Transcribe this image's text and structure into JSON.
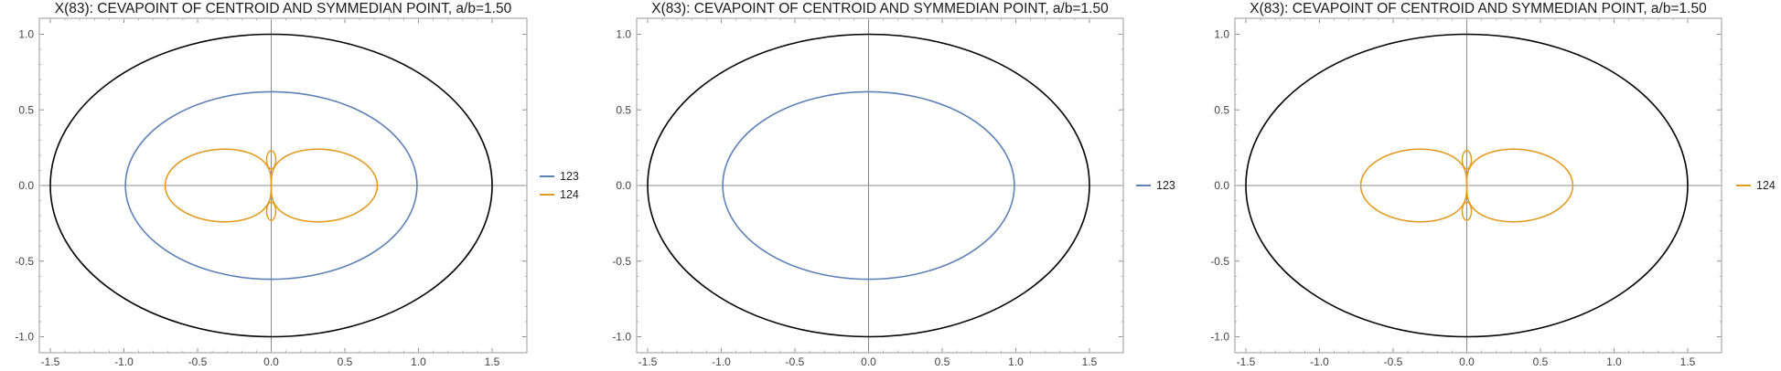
{
  "chart_data": [
    {
      "type": "line",
      "title": "X(83): CEVAPOINT OF CENTROID AND SYMMEDIAN POINT, a/b=1.50",
      "xlim": [
        -1.6,
        1.6
      ],
      "ylim": [
        -1.05,
        1.05
      ],
      "x_ticks": [
        "-1.5",
        "-1.0",
        "-0.5",
        "0.0",
        "0.5",
        "1.0",
        "1.5"
      ],
      "y_ticks": [
        "-1.0",
        "-0.5",
        "0.0",
        "0.5",
        "1.0"
      ],
      "grid": false,
      "legend_position": "right",
      "reference_ellipse": {
        "a": 1.5,
        "b": 1.0,
        "color": "#000000"
      },
      "series": [
        {
          "name": "123",
          "color": "#5E81B5",
          "curve": "ellipse",
          "a": 0.99,
          "b": 0.62
        },
        {
          "name": "124",
          "color": "#E19C24",
          "curve": "double-lobe",
          "x_extent": 0.72,
          "y_extent": 0.33
        }
      ]
    },
    {
      "type": "line",
      "title": "X(83): CEVAPOINT OF CENTROID AND SYMMEDIAN POINT, a/b=1.50",
      "xlim": [
        -1.6,
        1.6
      ],
      "ylim": [
        -1.05,
        1.05
      ],
      "x_ticks": [
        "-1.5",
        "-1.0",
        "-0.5",
        "0.0",
        "0.5",
        "1.0",
        "1.5"
      ],
      "y_ticks": [
        "-1.0",
        "-0.5",
        "0.0",
        "0.5",
        "1.0"
      ],
      "grid": false,
      "legend_position": "right",
      "reference_ellipse": {
        "a": 1.5,
        "b": 1.0,
        "color": "#000000"
      },
      "series": [
        {
          "name": "123",
          "color": "#5E81B5",
          "curve": "ellipse",
          "a": 0.99,
          "b": 0.62
        }
      ]
    },
    {
      "type": "line",
      "title": "X(83): CEVAPOINT OF CENTROID AND SYMMEDIAN POINT, a/b=1.50",
      "xlim": [
        -1.6,
        1.6
      ],
      "ylim": [
        -1.05,
        1.05
      ],
      "x_ticks": [
        "-1.5",
        "-1.0",
        "-0.5",
        "0.0",
        "0.5",
        "1.0",
        "1.5"
      ],
      "y_ticks": [
        "-1.0",
        "-0.5",
        "0.0",
        "0.5",
        "1.0"
      ],
      "grid": false,
      "legend_position": "right",
      "reference_ellipse": {
        "a": 1.5,
        "b": 1.0,
        "color": "#000000"
      },
      "series": [
        {
          "name": "124",
          "color": "#E19C24",
          "curve": "double-lobe",
          "x_extent": 0.72,
          "y_extent": 0.33
        }
      ]
    }
  ]
}
